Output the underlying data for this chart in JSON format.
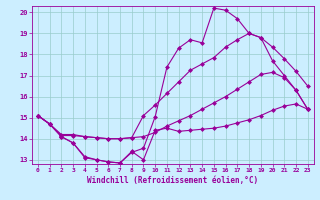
{
  "xlabel": "Windchill (Refroidissement éolien,°C)",
  "background_color": "#cceeff",
  "line_color": "#990099",
  "xlim": [
    -0.5,
    23.5
  ],
  "ylim": [
    12.8,
    20.3
  ],
  "yticks": [
    13,
    14,
    15,
    16,
    17,
    18,
    19,
    20
  ],
  "xticks": [
    0,
    1,
    2,
    3,
    4,
    5,
    6,
    7,
    8,
    9,
    10,
    11,
    12,
    13,
    14,
    15,
    16,
    17,
    18,
    19,
    20,
    21,
    22,
    23
  ],
  "line1_x": [
    0,
    1,
    2,
    3,
    4,
    5,
    6,
    7,
    8,
    9,
    10,
    11,
    12,
    13,
    14,
    15,
    16,
    17,
    18,
    19,
    20,
    21,
    22,
    23
  ],
  "line1_y": [
    15.1,
    14.7,
    14.1,
    13.8,
    13.1,
    13.0,
    12.9,
    12.85,
    13.4,
    13.0,
    14.4,
    14.5,
    14.35,
    14.4,
    14.45,
    14.5,
    14.6,
    14.75,
    14.9,
    15.1,
    15.35,
    15.55,
    15.65,
    15.4
  ],
  "line2_x": [
    0,
    1,
    2,
    3,
    4,
    5,
    6,
    7,
    8,
    9,
    10,
    11,
    12,
    13,
    14,
    15,
    16,
    17,
    18,
    19,
    20,
    21,
    22,
    23
  ],
  "line2_y": [
    15.1,
    14.7,
    14.15,
    14.15,
    14.1,
    14.05,
    14.0,
    14.0,
    14.05,
    14.1,
    14.3,
    14.6,
    14.85,
    15.1,
    15.4,
    15.7,
    16.0,
    16.35,
    16.7,
    17.05,
    17.15,
    16.9,
    16.3,
    15.4
  ],
  "line3_x": [
    0,
    1,
    2,
    3,
    4,
    5,
    6,
    7,
    8,
    9,
    10,
    11,
    12,
    13,
    14,
    15,
    16,
    17,
    18,
    19,
    20,
    21,
    22,
    23
  ],
  "line3_y": [
    15.1,
    14.7,
    14.2,
    14.2,
    14.1,
    14.05,
    14.0,
    14.0,
    14.05,
    15.1,
    15.6,
    16.15,
    16.7,
    17.25,
    17.55,
    17.85,
    18.35,
    18.7,
    19.0,
    18.8,
    18.35,
    17.8,
    17.2,
    16.5
  ],
  "line4_x": [
    0,
    1,
    2,
    3,
    4,
    5,
    6,
    7,
    8,
    9,
    10,
    11,
    12,
    13,
    14,
    15,
    16,
    17,
    18,
    19,
    20,
    21,
    22,
    23
  ],
  "line4_y": [
    15.1,
    14.7,
    14.1,
    13.8,
    13.15,
    13.0,
    12.9,
    12.85,
    13.35,
    13.55,
    15.05,
    17.4,
    18.3,
    18.7,
    18.55,
    20.2,
    20.1,
    19.7,
    19.0,
    18.8,
    17.7,
    17.0,
    16.3,
    15.4
  ],
  "grid_color": "#99cccc",
  "markersize": 2.5
}
